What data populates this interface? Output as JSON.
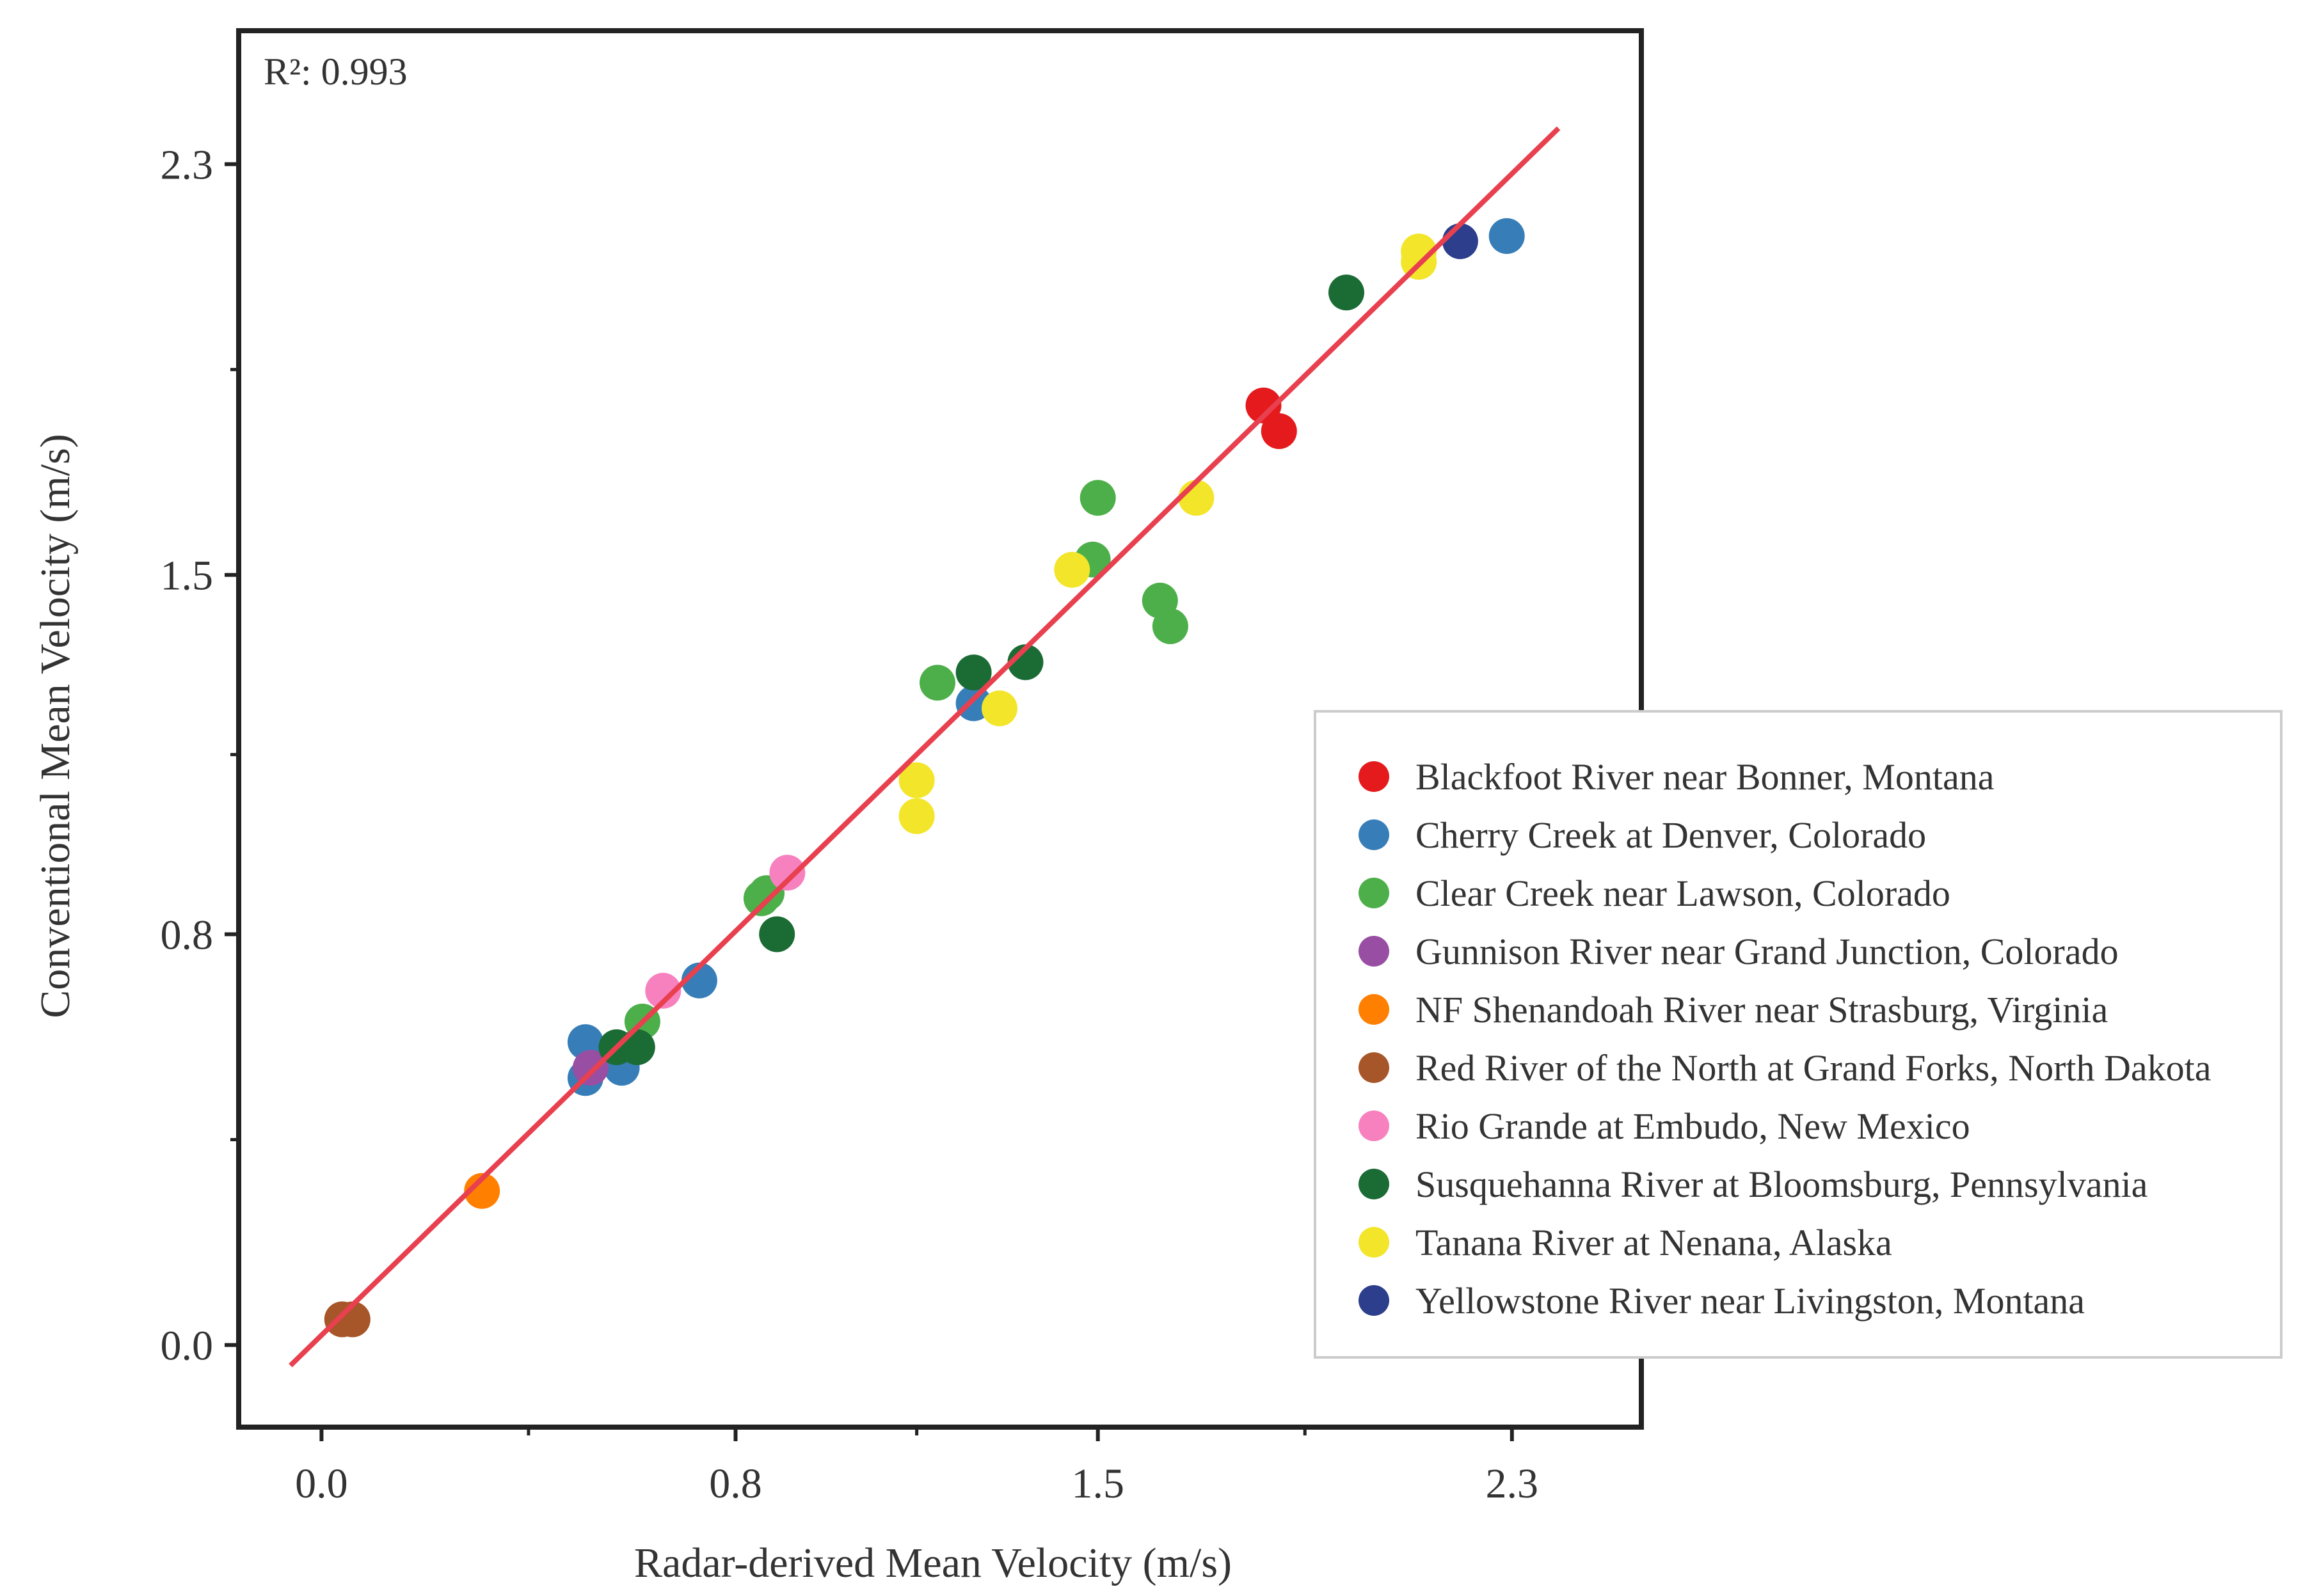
{
  "chart_data": {
    "type": "scatter",
    "title": "",
    "xlabel": "Radar-derived Mean Velocity (m/s)",
    "ylabel": "Conventional Mean Velocity (m/s)",
    "xlim": [
      -0.16,
      2.55
    ],
    "ylim": [
      -0.16,
      2.56
    ],
    "xticks": [
      0.0,
      0.8,
      1.5,
      2.3
    ],
    "yticks": [
      0.0,
      0.8,
      1.5,
      2.3
    ],
    "xtick_labels": [
      "0.0",
      "0.8",
      "1.5",
      "2.3"
    ],
    "ytick_labels": [
      "0.0",
      "0.8",
      "1.5",
      "2.3"
    ],
    "annotation": "R²: 0.993",
    "fit_line": {
      "x": [
        -0.06,
        2.39
      ],
      "y": [
        -0.04,
        2.37
      ],
      "color": "#e8404f"
    },
    "legend_position": "right",
    "series": [
      {
        "name": "Blackfoot River near Bonner, Montana",
        "color": "#e41a1c",
        "points": [
          [
            1.82,
            1.83
          ],
          [
            1.85,
            1.78
          ]
        ]
      },
      {
        "name": "Cherry Creek at Denver, Colorado",
        "color": "#377eb8",
        "points": [
          [
            0.51,
            0.59
          ],
          [
            0.51,
            0.52
          ],
          [
            0.58,
            0.54
          ],
          [
            0.73,
            0.71
          ],
          [
            1.26,
            1.25
          ],
          [
            2.29,
            2.16
          ]
        ]
      },
      {
        "name": "Clear Creek near Lawson, Colorado",
        "color": "#4daf4a",
        "points": [
          [
            0.62,
            0.63
          ],
          [
            0.85,
            0.87
          ],
          [
            0.86,
            0.88
          ],
          [
            1.19,
            1.29
          ],
          [
            1.5,
            1.65
          ],
          [
            1.49,
            1.53
          ],
          [
            1.62,
            1.45
          ],
          [
            1.64,
            1.4
          ]
        ]
      },
      {
        "name": "Gunnison River near Grand Junction, Colorado",
        "color": "#984ea3",
        "points": [
          [
            0.52,
            0.54
          ]
        ]
      },
      {
        "name": "NF Shenandoah River near Strasburg, Virginia",
        "color": "#ff7f00",
        "points": [
          [
            0.31,
            0.3
          ]
        ]
      },
      {
        "name": "Red River of the North at Grand Forks, North Dakota",
        "color": "#a65628",
        "points": [
          [
            0.04,
            0.05
          ],
          [
            0.06,
            0.05
          ]
        ]
      },
      {
        "name": "Rio Grande at Embudo, New Mexico",
        "color": "#f781bf",
        "points": [
          [
            0.66,
            0.69
          ],
          [
            0.9,
            0.92
          ]
        ]
      },
      {
        "name": "Susquehanna River at Bloomsburg, Pennsylvania",
        "color": "#1b6b35",
        "points": [
          [
            0.57,
            0.58
          ],
          [
            0.61,
            0.58
          ],
          [
            0.88,
            0.8
          ],
          [
            1.26,
            1.31
          ],
          [
            1.36,
            1.33
          ],
          [
            1.98,
            2.05
          ]
        ]
      },
      {
        "name": "Tanana River at Nenana, Alaska",
        "color": "#f2e52a",
        "points": [
          [
            1.15,
            1.1
          ],
          [
            1.15,
            1.03
          ],
          [
            1.31,
            1.24
          ],
          [
            1.45,
            1.51
          ],
          [
            1.69,
            1.65
          ],
          [
            2.12,
            2.11
          ],
          [
            2.12,
            2.13
          ]
        ]
      },
      {
        "name": "Yellowstone River near Livingston, Montana",
        "color": "#2c3e8c",
        "points": [
          [
            2.2,
            2.15
          ]
        ]
      }
    ]
  }
}
